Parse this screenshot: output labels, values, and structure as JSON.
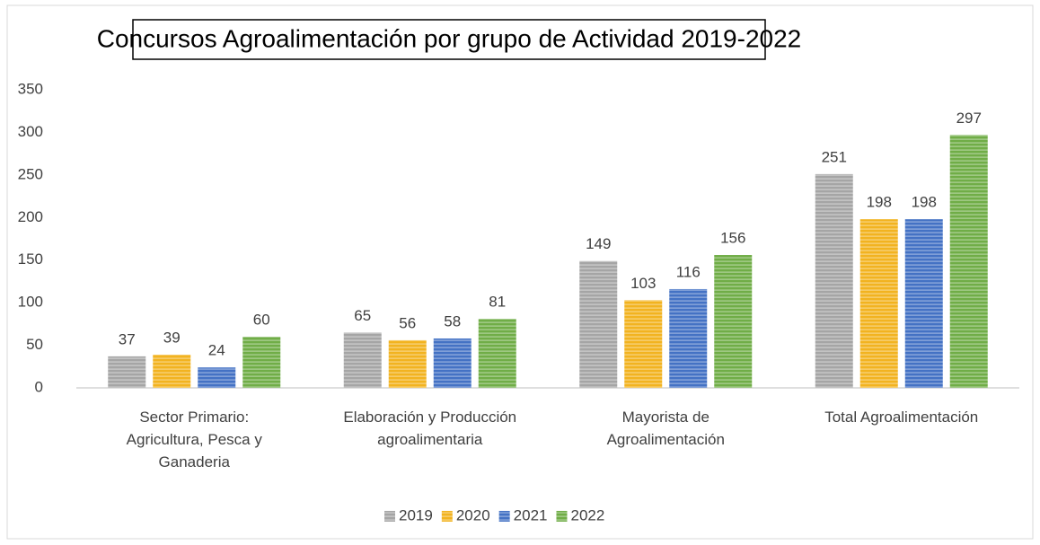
{
  "chart_data": {
    "type": "bar",
    "title": "Concursos Agroalimentación por grupo de Actividad 2019-2022",
    "categories": [
      "Sector Primario:\nAgricultura, Pesca y\nGanaderia",
      "Elaboración y Producción\nagroalimentaria",
      "Mayorista de\nAgroalimentación",
      "Total Agroalimentación"
    ],
    "series": [
      {
        "name": "2019",
        "color": "#a5a5a5",
        "values": [
          37,
          65,
          149,
          251
        ]
      },
      {
        "name": "2020",
        "color": "#f2b320",
        "values": [
          39,
          56,
          103,
          198
        ]
      },
      {
        "name": "2021",
        "color": "#4472c4",
        "values": [
          24,
          58,
          116,
          198
        ]
      },
      {
        "name": "2022",
        "color": "#70ad47",
        "values": [
          60,
          81,
          156,
          297
        ]
      }
    ],
    "ylim": [
      0,
      350
    ],
    "yticks": [
      0,
      50,
      100,
      150,
      200,
      250,
      300,
      350
    ],
    "grid": false,
    "legend": "bottom"
  }
}
